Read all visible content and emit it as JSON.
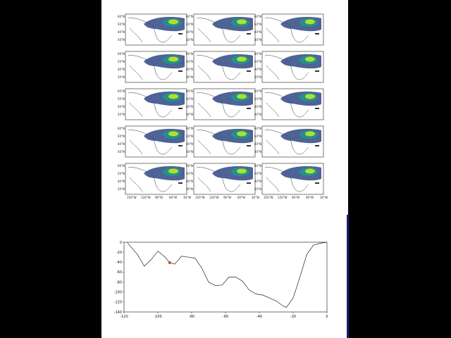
{
  "map_panel_grid": {
    "rows": 5,
    "cols": 3,
    "lat_ticks": [
      "60°N",
      "50°N",
      "40°N",
      "30°N"
    ],
    "lon_ticks": [
      "150°W",
      "120°W",
      "90°W",
      "60°W",
      "30°W"
    ],
    "colormap": [
      "#440154",
      "#3b528b",
      "#21918c",
      "#5ec962",
      "#b5de2b"
    ]
  },
  "chart_data": {
    "type": "line",
    "x": [
      -118,
      -112,
      -108,
      -104,
      -100,
      -96,
      -93,
      -90,
      -86,
      -82,
      -78,
      -74,
      -70,
      -66,
      -62,
      -58,
      -54,
      -50,
      -46,
      -42,
      -38,
      -34,
      -30,
      -26,
      -24,
      -20,
      -16,
      -12,
      -8,
      -4,
      0
    ],
    "y": [
      -1,
      -25,
      -48,
      -35,
      -18,
      -29,
      -41,
      -44,
      -28,
      -30,
      -32,
      -52,
      -80,
      -87,
      -86,
      -70,
      -70,
      -78,
      -96,
      -104,
      -106,
      -112,
      -118,
      -128,
      -131,
      -112,
      -70,
      -25,
      -6,
      -2,
      0
    ],
    "marker": {
      "x": -93,
      "y": -41,
      "color": "#e8442a"
    },
    "xlim": [
      -120,
      0
    ],
    "ylim": [
      -140,
      0
    ],
    "xticks": [
      "-120",
      "-100",
      "-80",
      "-60",
      "-40",
      "-20",
      "0"
    ],
    "yticks": [
      "0",
      "-20",
      "-40",
      "-60",
      "-80",
      "-100",
      "-120",
      "-140"
    ]
  }
}
